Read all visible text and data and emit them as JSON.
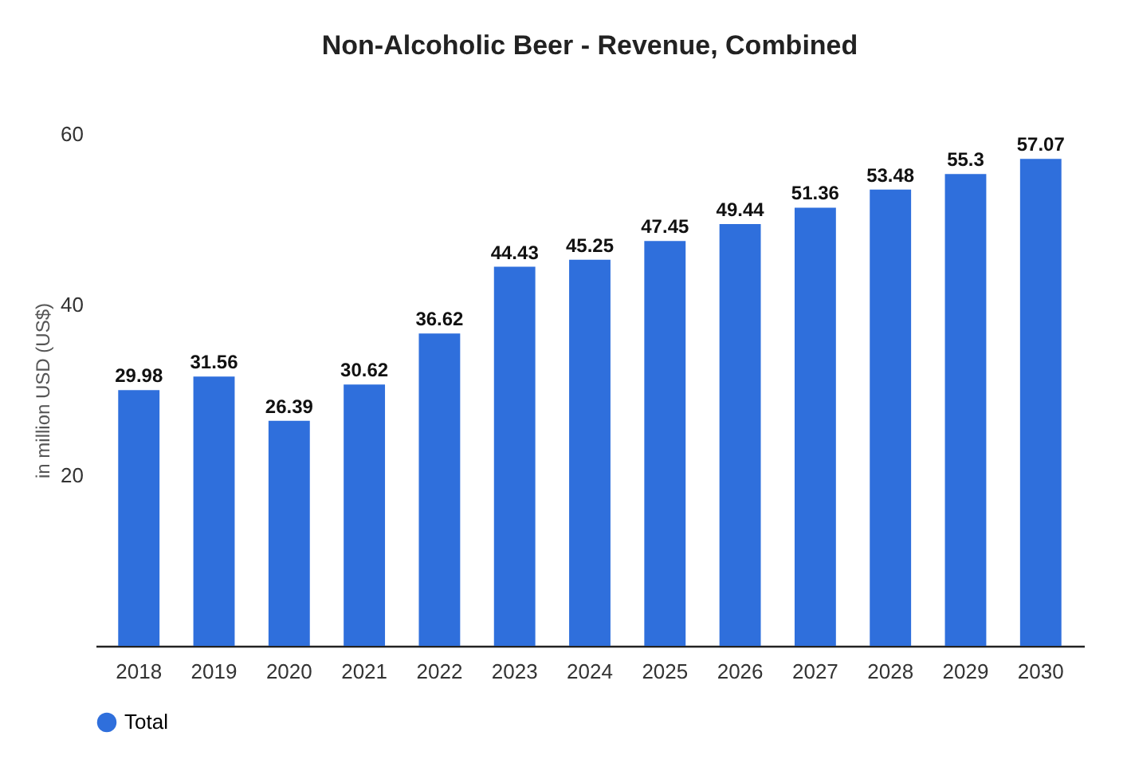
{
  "chart_data": {
    "type": "bar",
    "title": "Non-Alcoholic Beer - Revenue, Combined",
    "ylabel": "in million USD (US$)",
    "categories": [
      "2018",
      "2019",
      "2020",
      "2021",
      "2022",
      "2023",
      "2024",
      "2025",
      "2026",
      "2027",
      "2028",
      "2029",
      "2030"
    ],
    "series": [
      {
        "name": "Total",
        "color": "#2f6fdc",
        "values": [
          29.98,
          31.56,
          26.39,
          30.62,
          36.62,
          44.43,
          45.25,
          47.45,
          49.44,
          51.36,
          53.48,
          55.3,
          57.07
        ]
      }
    ],
    "ylim": [
      0,
      60
    ],
    "yticks": [
      20,
      40,
      60
    ],
    "grid": false,
    "legend": "bottom",
    "data_labels": true
  }
}
